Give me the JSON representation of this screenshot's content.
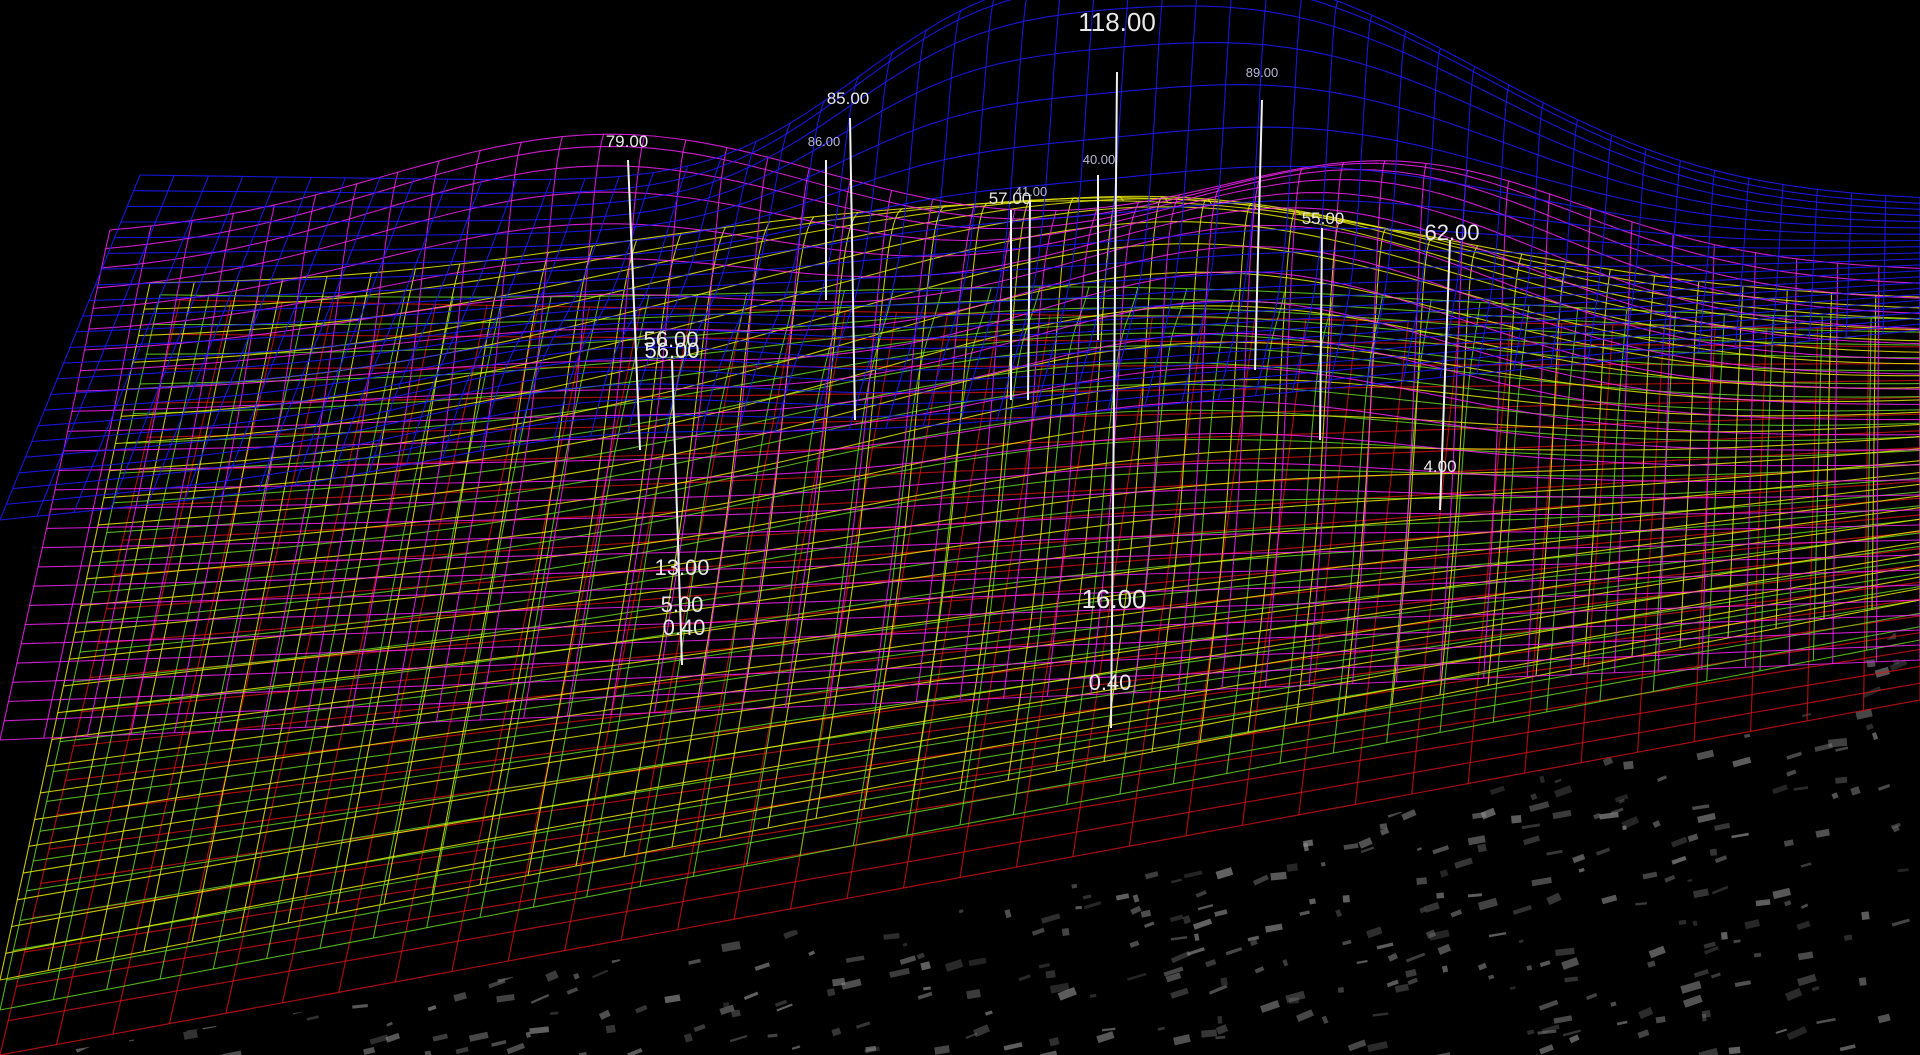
{
  "colors": {
    "background": "#000000",
    "surface_blue": "#1a1aff",
    "surface_magenta": "#ff22ff",
    "surface_yellow": "#e8e800",
    "surface_green": "#66dd22",
    "surface_red": "#dd1111",
    "label": "#e8e8e8",
    "map_texture": "#8c8c8c"
  },
  "chart_data": {
    "type": "surface-3d-wireframe",
    "title": "",
    "xlabel": "",
    "ylabel": "",
    "zlabel": "",
    "grid": true,
    "legend": "none",
    "layers": [
      "blue",
      "magenta",
      "yellow",
      "green",
      "red"
    ],
    "peak_labels": [
      {
        "label": "118.00",
        "value": 118.0,
        "layer": "blue"
      },
      {
        "label": "85.00",
        "value": 85.0,
        "layer": "blue"
      },
      {
        "label": "79.00",
        "value": 79.0,
        "layer": "magenta"
      },
      {
        "label": "89.00",
        "value": 89.0,
        "layer": "blue"
      },
      {
        "label": "86.00",
        "value": 86.0,
        "layer": "blue"
      },
      {
        "label": "57.00",
        "value": 57.0,
        "layer": "blue"
      },
      {
        "label": "40.00",
        "value": 40.0,
        "layer": "blue"
      },
      {
        "label": "41.00",
        "value": 41.0,
        "layer": "blue"
      },
      {
        "label": "55.00",
        "value": 55.0,
        "layer": "magenta"
      },
      {
        "label": "62.00",
        "value": 62.0,
        "layer": "magenta"
      },
      {
        "label": "56.00",
        "value": 56.0,
        "layer": "yellow"
      },
      {
        "label": "56.00",
        "value": 56.0,
        "layer": "yellow"
      },
      {
        "label": "13.00",
        "value": 13.0,
        "layer": "green"
      },
      {
        "label": "5.00",
        "value": 5.0,
        "layer": "green"
      },
      {
        "label": "0.40",
        "value": 0.4,
        "layer": "red"
      },
      {
        "label": "16.00",
        "value": 16.0,
        "layer": "green"
      },
      {
        "label": "0.40",
        "value": 0.4,
        "layer": "red"
      },
      {
        "label": "4.00",
        "value": 4.0,
        "layer": "green"
      }
    ]
  }
}
